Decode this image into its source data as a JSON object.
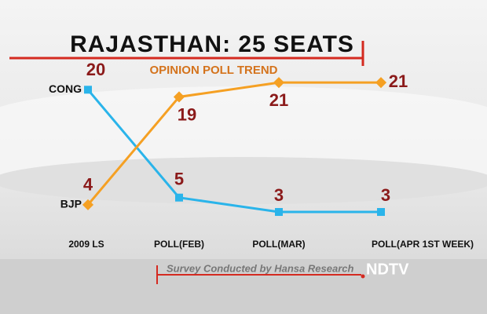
{
  "chart_data": {
    "type": "line",
    "title": "RAJASTHAN: 25 SEATS",
    "subtitle": "OPINION POLL TREND",
    "categories": [
      "2009 LS",
      "POLL(FEB)",
      "POLL(MAR)",
      "POLL(APR 1ST WEEK)"
    ],
    "series": [
      {
        "name": "CONG",
        "color": "#2ab4ea",
        "values": [
          20,
          5,
          3,
          3
        ]
      },
      {
        "name": "BJP",
        "color": "#f5a023",
        "values": [
          4,
          19,
          21,
          21
        ]
      }
    ],
    "ylim": [
      0,
      25
    ],
    "note": "Survey Conducted by Hansa Research",
    "logo": "NDTV"
  }
}
